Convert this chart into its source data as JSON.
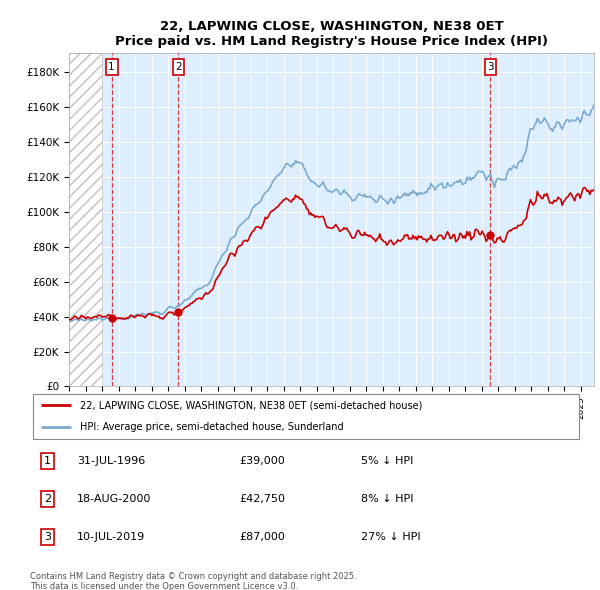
{
  "title": "22, LAPWING CLOSE, WASHINGTON, NE38 0ET",
  "subtitle": "Price paid vs. HM Land Registry's House Price Index (HPI)",
  "ylim": [
    0,
    190000
  ],
  "xlim_start": 1994.0,
  "xlim_end": 2025.8,
  "transactions": [
    {
      "num": 1,
      "date": "31-JUL-1996",
      "price": 39000,
      "year": 1996.58,
      "pct": "5%",
      "dir": "↓"
    },
    {
      "num": 2,
      "date": "18-AUG-2000",
      "price": 42750,
      "year": 2000.63,
      "pct": "8%",
      "dir": "↓"
    },
    {
      "num": 3,
      "date": "10-JUL-2019",
      "price": 87000,
      "year": 2019.53,
      "pct": "27%",
      "dir": "↓"
    }
  ],
  "legend_property": "22, LAPWING CLOSE, WASHINGTON, NE38 0ET (semi-detached house)",
  "legend_hpi": "HPI: Average price, semi-detached house, Sunderland",
  "property_color": "#cc0000",
  "hpi_color": "#7aaad0",
  "footnote_line1": "Contains HM Land Registry data © Crown copyright and database right 2025.",
  "footnote_line2": "This data is licensed under the Open Government Licence v3.0.",
  "bg_color": "#ddeeff",
  "grid_color": "#ffffff",
  "hatch_end": 1996.0,
  "yticks": [
    0,
    20000,
    40000,
    60000,
    80000,
    100000,
    120000,
    140000,
    160000,
    180000
  ],
  "ytick_labels": [
    "£0",
    "£20K",
    "£40K",
    "£60K",
    "£80K",
    "£100K",
    "£120K",
    "£140K",
    "£160K",
    "£180K"
  ]
}
